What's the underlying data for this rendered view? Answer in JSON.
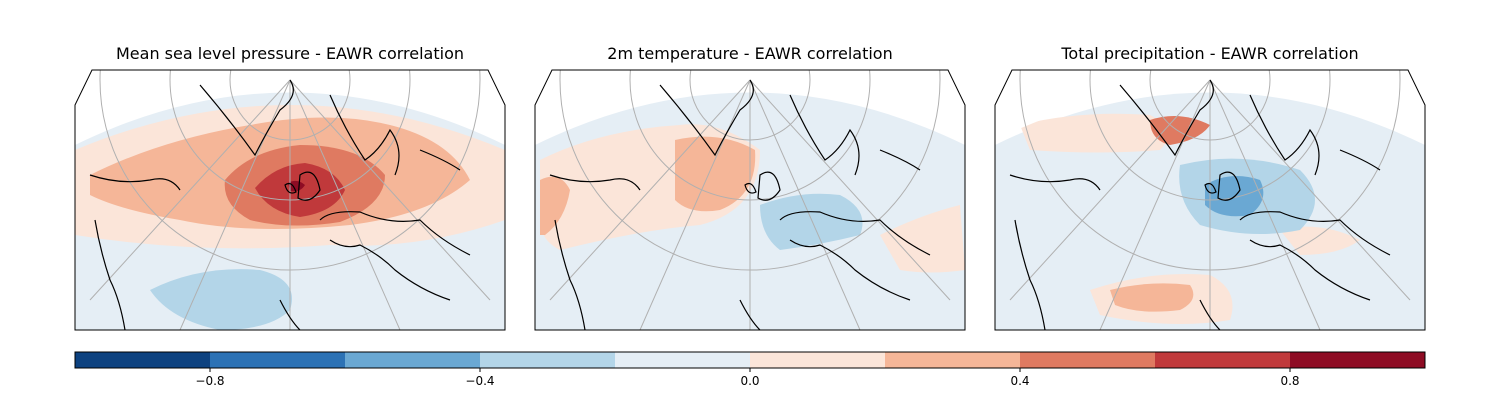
{
  "panels": [
    {
      "title": "Mean sea level pressure - EAWR correlation"
    },
    {
      "title": "2m temperature - EAWR correlation"
    },
    {
      "title": "Total precipitation - EAWR correlation"
    }
  ],
  "colorbar": {
    "min": -1.0,
    "max": 1.0,
    "bins": [
      {
        "from": -1.0,
        "to": -0.8,
        "color": "#0d4280"
      },
      {
        "from": -0.8,
        "to": -0.6,
        "color": "#2c72b5"
      },
      {
        "from": -0.6,
        "to": -0.4,
        "color": "#6aa8d3"
      },
      {
        "from": -0.4,
        "to": -0.2,
        "color": "#b3d5e8"
      },
      {
        "from": -0.2,
        "to": 0.0,
        "color": "#e5eef5"
      },
      {
        "from": 0.0,
        "to": 0.2,
        "color": "#fbe5d9"
      },
      {
        "from": 0.2,
        "to": 0.4,
        "color": "#f5b698"
      },
      {
        "from": 0.4,
        "to": 0.6,
        "color": "#df7a61"
      },
      {
        "from": 0.6,
        "to": 0.8,
        "color": "#c0393b"
      },
      {
        "from": 0.8,
        "to": 1.0,
        "color": "#8e0c24"
      }
    ],
    "ticks": [
      {
        "value": -0.8,
        "label": "−0.8"
      },
      {
        "value": -0.4,
        "label": "−0.4"
      },
      {
        "value": 0.0,
        "label": "0.0"
      },
      {
        "value": 0.4,
        "label": "0.4"
      },
      {
        "value": 0.8,
        "label": "0.8"
      }
    ]
  },
  "colors": {
    "land_outline": "#000000",
    "graticule": "#b0b0b0",
    "background": "#ffffff"
  }
}
